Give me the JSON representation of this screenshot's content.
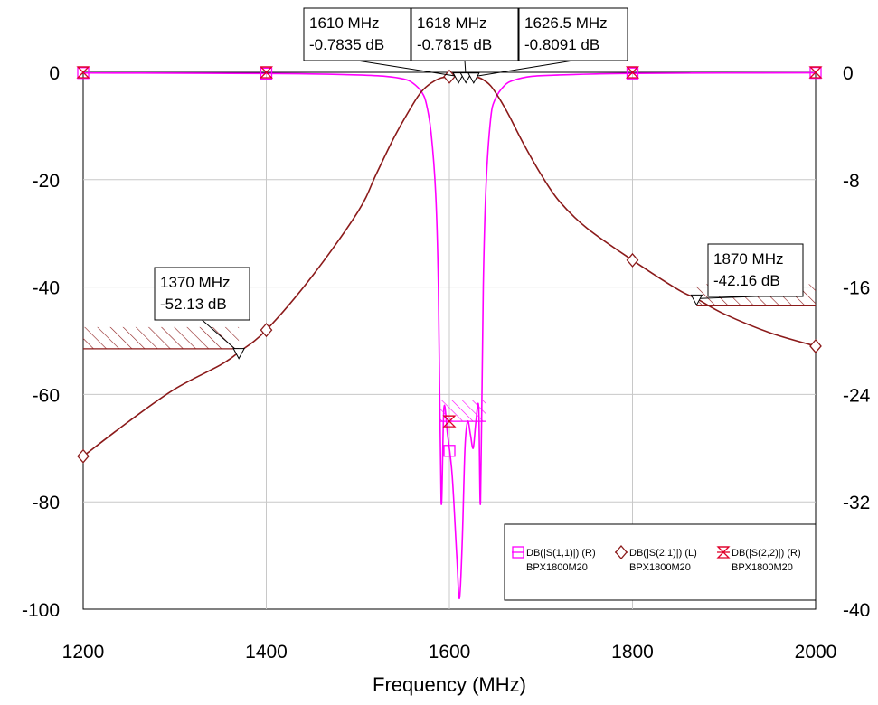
{
  "chart_data": {
    "type": "line",
    "xlabel": "Frequency (MHz)",
    "x_ticks": [
      "1200",
      "1400",
      "1600",
      "1800",
      "2000"
    ],
    "xlim": [
      1200,
      2000
    ],
    "left_axis": {
      "ylim": [
        -100,
        0
      ],
      "ticks": [
        "0",
        "-20",
        "-40",
        "-60",
        "-80",
        "-100"
      ]
    },
    "right_axis": {
      "ylim": [
        -40,
        0
      ],
      "ticks": [
        "0",
        "-8",
        "-16",
        "-24",
        "-32",
        "-40"
      ]
    },
    "grid": true,
    "legend_position": "bottom-right",
    "series": [
      {
        "name": "DB(|S(1,1)|) (R)",
        "source": "BPX1800M20",
        "axis": "right",
        "color": "#ff00ff",
        "marker": "square",
        "x": [
          1200,
          1300,
          1400,
          1450,
          1500,
          1530,
          1550,
          1560,
          1570,
          1575,
          1580,
          1585,
          1588,
          1591,
          1594,
          1598,
          1603,
          1608,
          1611,
          1614,
          1617,
          1620,
          1623,
          1626,
          1629,
          1632,
          1634,
          1637,
          1640,
          1645,
          1650,
          1660,
          1670,
          1690,
          1720,
          1760,
          1800,
          1900,
          2000
        ],
        "y": [
          -0.05,
          -0.06,
          -0.09,
          -0.12,
          -0.2,
          -0.3,
          -0.5,
          -0.8,
          -1.5,
          -2.4,
          -4.5,
          -9,
          -16,
          -32,
          -25,
          -27,
          -30,
          -36,
          -39.2,
          -35,
          -28,
          -26,
          -27,
          -28,
          -26,
          -25,
          -32,
          -16,
          -8.5,
          -3.5,
          -2,
          -1,
          -0.6,
          -0.3,
          -0.2,
          -0.12,
          -0.08,
          -0.05,
          -0.04
        ]
      },
      {
        "name": "DB(|S(2,1)|) (L)",
        "source": "BPX1800M20",
        "axis": "left",
        "color": "#8b1a1a",
        "marker": "diamond",
        "x": [
          1200,
          1250,
          1300,
          1350,
          1370,
          1400,
          1450,
          1500,
          1520,
          1540,
          1560,
          1570,
          1580,
          1590,
          1600,
          1610,
          1618,
          1626.5,
          1635,
          1645,
          1655,
          1665,
          1680,
          1700,
          1720,
          1750,
          1800,
          1850,
          1870,
          1900,
          1950,
          2000
        ],
        "y": [
          -71.5,
          -65,
          -59,
          -54.5,
          -52.13,
          -48,
          -38,
          -26,
          -19,
          -12,
          -6,
          -3.5,
          -2,
          -1.1,
          -0.8,
          -0.7835,
          -0.7815,
          -0.8091,
          -1.2,
          -2.5,
          -5,
          -8,
          -13,
          -19,
          -24,
          -29,
          -35,
          -40.5,
          -42.16,
          -45,
          -48.5,
          -51
        ]
      },
      {
        "name": "DB(|S(2,2)|) (R)",
        "source": "BPX1800M20",
        "axis": "right",
        "color": "#e0002a",
        "marker": "bowtie",
        "x": [
          1200,
          1400,
          1600,
          1800,
          2000
        ],
        "y": [
          0,
          0,
          -26,
          0,
          0
        ]
      }
    ],
    "markers": [
      {
        "freq": "1610 MHz",
        "value": "-0.7835 dB",
        "x": 1610,
        "y": -0.7835
      },
      {
        "freq": "1618 MHz",
        "value": "-0.7815 dB",
        "x": 1618,
        "y": -0.7815
      },
      {
        "freq": "1626.5 MHz",
        "value": "-0.8091 dB",
        "x": 1626.5,
        "y": -0.8091
      },
      {
        "freq": "1370 MHz",
        "value": "-52.13 dB",
        "x": 1370,
        "y": -52.13
      },
      {
        "freq": "1870 MHz",
        "value": "-42.16 dB",
        "x": 1870,
        "y": -42.16
      }
    ],
    "spec_limits": [
      {
        "axis": "left",
        "x": [
          1200,
          1370
        ],
        "y": -51.5,
        "color": "#8b1a1a"
      },
      {
        "axis": "left",
        "x": [
          1870,
          2000
        ],
        "y": -43.5,
        "color": "#8b1a1a"
      },
      {
        "axis": "right",
        "x": [
          1590,
          1640
        ],
        "y": -26,
        "color": "#ff00ff"
      }
    ]
  }
}
